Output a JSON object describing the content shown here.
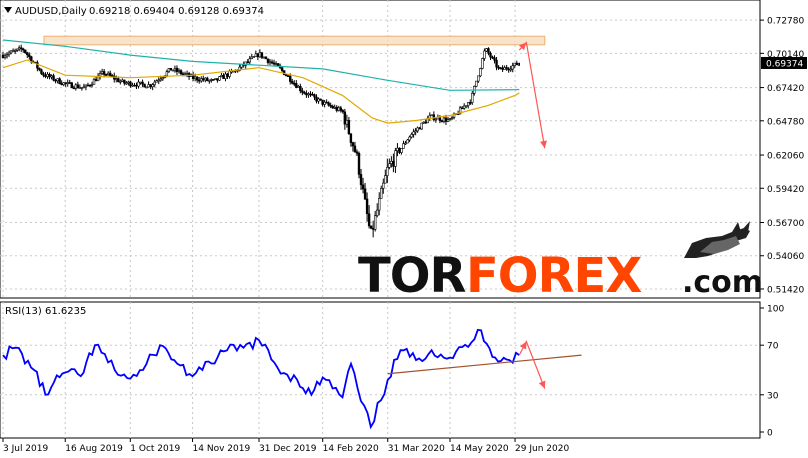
{
  "header": {
    "symbol_line": "AUDUSD,Daily",
    "ohlc": "0.69218 0.69404 0.69128 0.69374"
  },
  "rsi_header": "RSI(13) 61.6235",
  "watermark": {
    "part1": "TOR",
    "part2": "FOREX",
    "suffix": ".com"
  },
  "colors": {
    "candle": "#000000",
    "ma_long": "#20b2aa",
    "ma_short": "#e0a800",
    "resistance_zone_fill": "#f5dfc5",
    "resistance_zone_stroke": "#f0b070",
    "forecast_arrow": "#ff5555",
    "rsi_line": "#0000ff",
    "rsi_trendline": "#a0522d",
    "price_tag_bg": "#000000",
    "watermark_dark": "#111111",
    "watermark_orange": "#ff4500"
  },
  "chart_data": [
    {
      "type": "candlestick",
      "title": "AUDUSD,Daily",
      "current_price_label": "0.69374",
      "y_tick_labels": [
        "0.72780",
        "0.70140",
        "0.67420",
        "0.64780",
        "0.62060",
        "0.59420",
        "0.56700",
        "0.54060",
        "0.51420"
      ],
      "x_tick_labels": [
        "3 Jul 2019",
        "16 Aug 2019",
        "1 Oct 2019",
        "14 Nov 2019",
        "31 Dec 2019",
        "14 Feb 2020",
        "31 Mar 2020",
        "14 May 2020",
        "29 Jun 2020"
      ],
      "ylim": [
        0.511,
        0.739
      ],
      "grid": true,
      "legend": "none",
      "close_path": [
        {
          "x": "2019-07-03",
          "y": 0.7
        },
        {
          "x": "2019-07-17",
          "y": 0.705
        },
        {
          "x": "2019-07-31",
          "y": 0.685
        },
        {
          "x": "2019-08-16",
          "y": 0.677
        },
        {
          "x": "2019-08-30",
          "y": 0.674
        },
        {
          "x": "2019-09-12",
          "y": 0.686
        },
        {
          "x": "2019-09-26",
          "y": 0.678
        },
        {
          "x": "2019-10-15",
          "y": 0.676
        },
        {
          "x": "2019-10-30",
          "y": 0.689
        },
        {
          "x": "2019-11-14",
          "y": 0.682
        },
        {
          "x": "2019-11-29",
          "y": 0.679
        },
        {
          "x": "2019-12-15",
          "y": 0.688
        },
        {
          "x": "2019-12-31",
          "y": 0.701
        },
        {
          "x": "2020-01-15",
          "y": 0.689
        },
        {
          "x": "2020-01-31",
          "y": 0.671
        },
        {
          "x": "2020-02-14",
          "y": 0.662
        },
        {
          "x": "2020-02-28",
          "y": 0.655
        },
        {
          "x": "2020-03-09",
          "y": 0.62
        },
        {
          "x": "2020-03-19",
          "y": 0.556
        },
        {
          "x": "2020-03-31",
          "y": 0.61
        },
        {
          "x": "2020-04-15",
          "y": 0.635
        },
        {
          "x": "2020-04-30",
          "y": 0.651
        },
        {
          "x": "2020-05-14",
          "y": 0.648
        },
        {
          "x": "2020-05-29",
          "y": 0.665
        },
        {
          "x": "2020-06-08",
          "y": 0.705
        },
        {
          "x": "2020-06-18",
          "y": 0.688
        },
        {
          "x": "2020-06-29",
          "y": 0.692
        },
        {
          "x": "2020-07-02",
          "y": 0.694
        }
      ],
      "series": [
        {
          "values": [
            {
              "x": "2019-07-03",
              "y": 0.712
            },
            {
              "x": "2019-08-16",
              "y": 0.707
            },
            {
              "x": "2019-10-01",
              "y": 0.7
            },
            {
              "x": "2019-11-14",
              "y": 0.695
            },
            {
              "x": "2019-12-31",
              "y": 0.692
            },
            {
              "x": "2020-02-14",
              "y": 0.689
            },
            {
              "x": "2020-03-31",
              "y": 0.68
            },
            {
              "x": "2020-05-14",
              "y": 0.672
            },
            {
              "x": "2020-06-29",
              "y": 0.6725
            },
            {
              "x": "2020-07-02",
              "y": 0.6727
            }
          ]
        },
        {
          "values": [
            {
              "x": "2019-07-03",
              "y": 0.69
            },
            {
              "x": "2019-07-20",
              "y": 0.696
            },
            {
              "x": "2019-08-16",
              "y": 0.684
            },
            {
              "x": "2019-10-01",
              "y": 0.682
            },
            {
              "x": "2019-11-14",
              "y": 0.684
            },
            {
              "x": "2019-12-31",
              "y": 0.69
            },
            {
              "x": "2020-01-31",
              "y": 0.682
            },
            {
              "x": "2020-02-28",
              "y": 0.668
            },
            {
              "x": "2020-03-20",
              "y": 0.65
            },
            {
              "x": "2020-03-31",
              "y": 0.646
            },
            {
              "x": "2020-04-20",
              "y": 0.648
            },
            {
              "x": "2020-05-14",
              "y": 0.652
            },
            {
              "x": "2020-06-10",
              "y": 0.66
            },
            {
              "x": "2020-06-29",
              "y": 0.668
            },
            {
              "x": "2020-07-02",
              "y": 0.67
            }
          ]
        }
      ],
      "annotations": {
        "resistance_zone": {
          "x_start": "2019-08-01",
          "x_end": "2020-07-20",
          "y_low": 0.7082,
          "y_high": 0.715
        },
        "forecast_arrow": [
          {
            "x": "2020-07-02",
            "y": 0.704
          },
          {
            "x": "2020-07-07",
            "y": 0.71
          },
          {
            "x": "2020-07-20",
            "y": 0.626
          }
        ]
      }
    },
    {
      "type": "line",
      "title": "RSI(13) 61.6235",
      "y_tick_labels": [
        "100",
        "70",
        "30",
        "0"
      ],
      "ylim": [
        0,
        100
      ],
      "levels": [
        70,
        30
      ],
      "grid": true,
      "legend": "none",
      "series": [
        {
          "values": [
            {
              "x": "2019-07-03",
              "y": 62
            },
            {
              "x": "2019-07-12",
              "y": 68
            },
            {
              "x": "2019-07-25",
              "y": 50
            },
            {
              "x": "2019-08-02",
              "y": 30
            },
            {
              "x": "2019-08-08",
              "y": 40
            },
            {
              "x": "2019-08-16",
              "y": 48
            },
            {
              "x": "2019-08-27",
              "y": 45
            },
            {
              "x": "2019-09-06",
              "y": 70
            },
            {
              "x": "2019-09-20",
              "y": 50
            },
            {
              "x": "2019-10-01",
              "y": 43
            },
            {
              "x": "2019-10-10",
              "y": 50
            },
            {
              "x": "2019-10-22",
              "y": 70
            },
            {
              "x": "2019-11-01",
              "y": 58
            },
            {
              "x": "2019-11-14",
              "y": 45
            },
            {
              "x": "2019-11-21",
              "y": 50
            },
            {
              "x": "2019-12-06",
              "y": 65
            },
            {
              "x": "2019-12-20",
              "y": 68
            },
            {
              "x": "2019-12-31",
              "y": 74
            },
            {
              "x": "2020-01-13",
              "y": 52
            },
            {
              "x": "2020-01-27",
              "y": 42
            },
            {
              "x": "2020-02-06",
              "y": 30
            },
            {
              "x": "2020-02-14",
              "y": 44
            },
            {
              "x": "2020-02-28",
              "y": 28
            },
            {
              "x": "2020-03-05",
              "y": 55
            },
            {
              "x": "2020-03-12",
              "y": 25
            },
            {
              "x": "2020-03-19",
              "y": 4
            },
            {
              "x": "2020-03-31",
              "y": 42
            },
            {
              "x": "2020-04-09",
              "y": 66
            },
            {
              "x": "2020-04-20",
              "y": 58
            },
            {
              "x": "2020-05-01",
              "y": 66
            },
            {
              "x": "2020-05-14",
              "y": 60
            },
            {
              "x": "2020-05-29",
              "y": 72
            },
            {
              "x": "2020-06-05",
              "y": 82
            },
            {
              "x": "2020-06-15",
              "y": 60
            },
            {
              "x": "2020-06-25",
              "y": 58
            },
            {
              "x": "2020-07-02",
              "y": 62
            }
          ]
        }
      ],
      "annotations": {
        "trendline": [
          {
            "x": "2020-03-31",
            "y": 47
          },
          {
            "x": "2020-08-15",
            "y": 62
          }
        ],
        "forecast_arrow": [
          {
            "x": "2020-07-02",
            "y": 62
          },
          {
            "x": "2020-07-07",
            "y": 73
          },
          {
            "x": "2020-07-20",
            "y": 35
          }
        ]
      }
    }
  ]
}
